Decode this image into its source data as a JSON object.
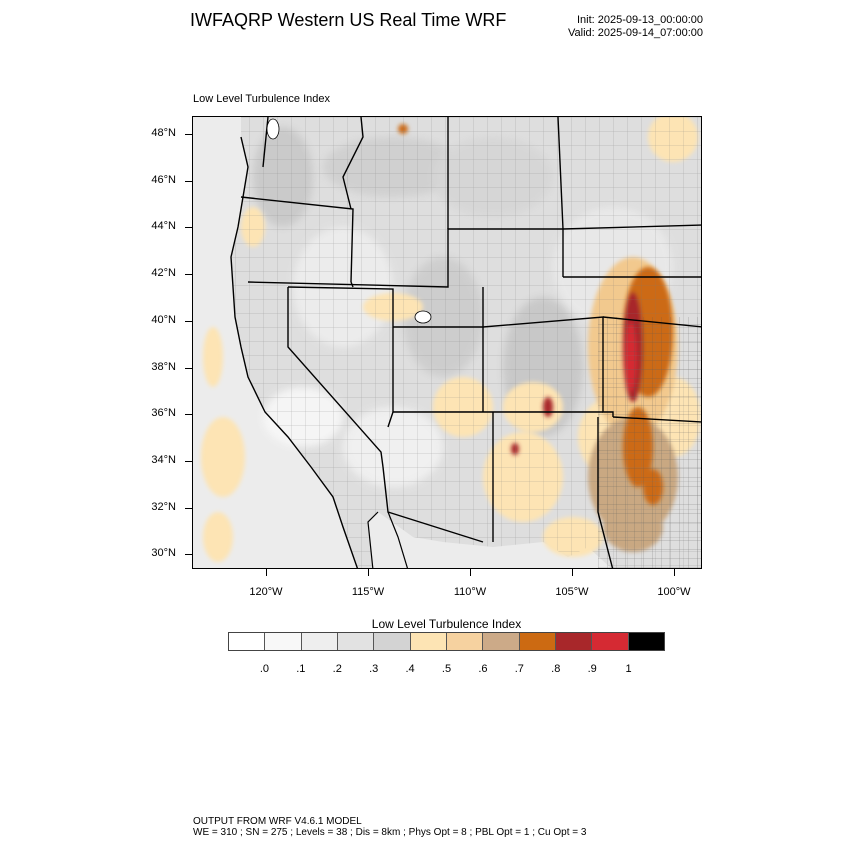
{
  "header": {
    "title": "IWFAQRP Western US Real Time WRF",
    "init": "Init: 2025-09-13_00:00:00",
    "valid": "Valid: 2025-09-14_07:00:00"
  },
  "map": {
    "subtitle": "Low Level Turbulence Index",
    "lat_labels": [
      "48°N",
      "46°N",
      "44°N",
      "42°N",
      "40°N",
      "38°N",
      "36°N",
      "34°N",
      "32°N",
      "30°N"
    ],
    "lon_labels": [
      "120°W",
      "115°W",
      "110°W",
      "105°W",
      "100°W"
    ],
    "colors": {
      "land_light": "#f4f4f4",
      "land_mid": "#dcdcdc",
      "ocean": "#ececec",
      "low": "#fde4b4",
      "med": "#f2c98e",
      "tan": "#c9a882",
      "orange": "#cc6a12",
      "dark_red": "#a8272a",
      "red": "#d52a33"
    }
  },
  "colorbar": {
    "title": "Low Level Turbulence Index",
    "colors": [
      "#ffffff",
      "#f8f8f8",
      "#eeeeee",
      "#e2e2e2",
      "#d3d3d3",
      "#fde4b4",
      "#f6d2a0",
      "#ccaa88",
      "#cc6a12",
      "#a8272a",
      "#d52a33",
      "#000000"
    ],
    "ticks": [
      ".0",
      ".1",
      ".2",
      ".3",
      ".4",
      ".5",
      ".6",
      ".7",
      ".8",
      ".9",
      "1"
    ]
  },
  "footer": {
    "line1": "OUTPUT FROM WRF V4.6.1 MODEL",
    "line2": "WE = 310 ; SN = 275 ; Levels = 38 ; Dis = 8km ; Phys Opt = 8 ; PBL Opt = 1 ; Cu Opt = 3"
  }
}
